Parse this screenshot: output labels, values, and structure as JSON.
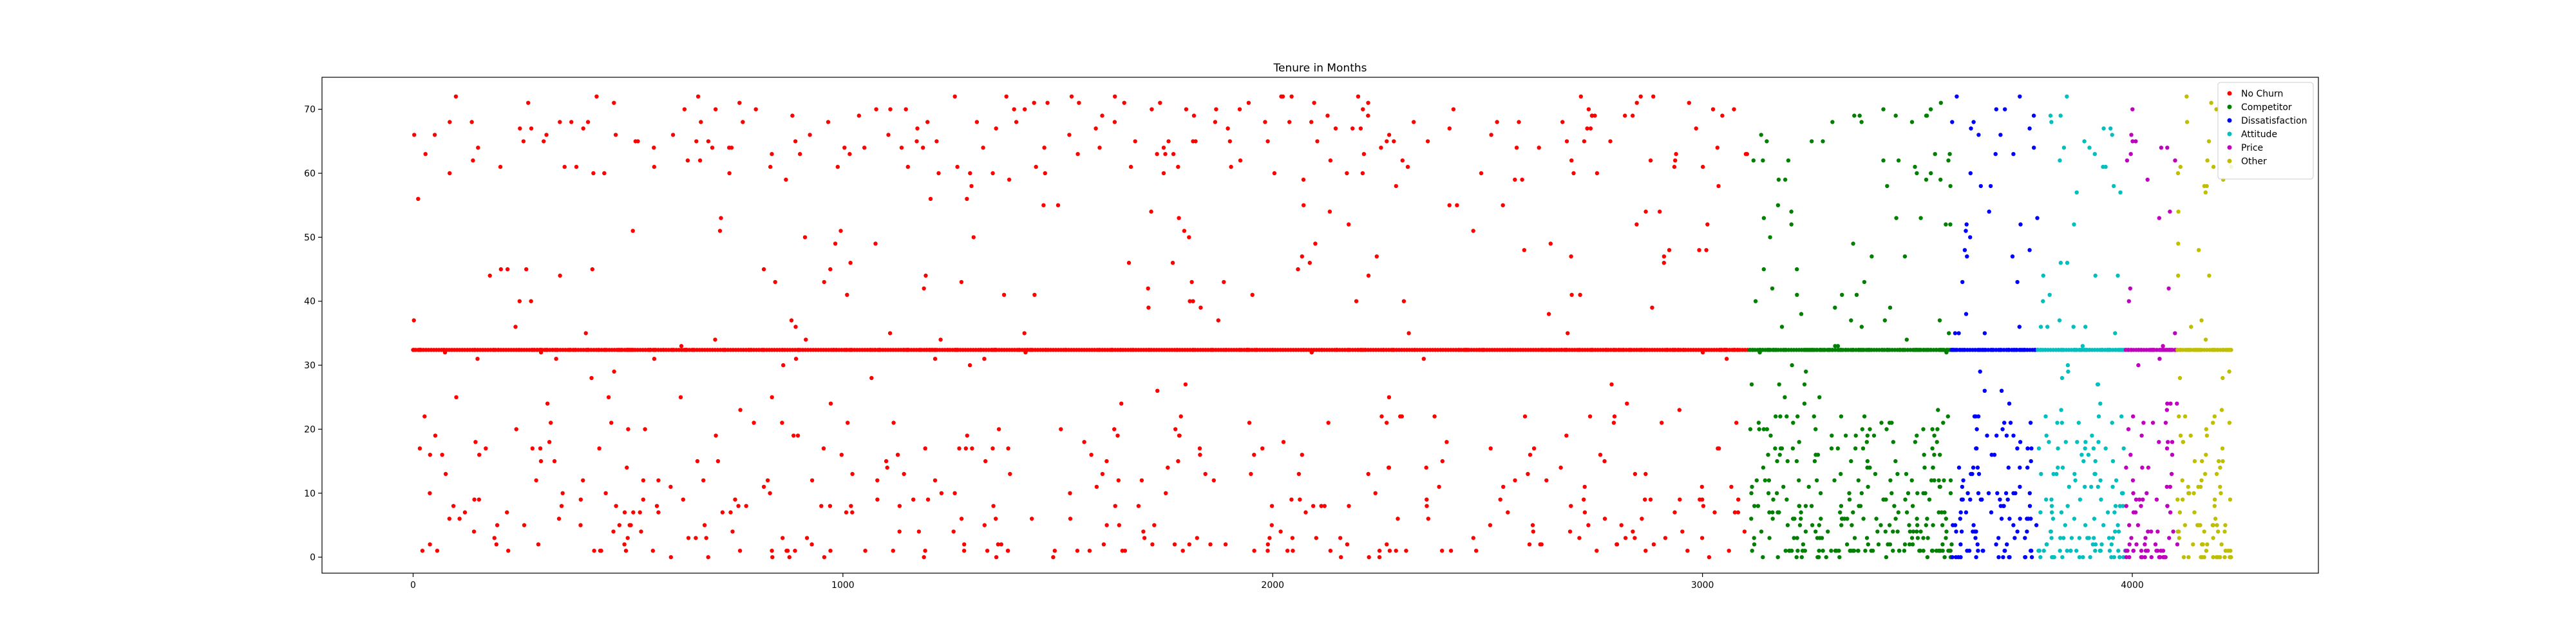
{
  "chart_data": {
    "type": "scatter",
    "title": "Tenure in Months",
    "xlabel": "",
    "ylabel": "",
    "xlim": [
      -212,
      4433
    ],
    "ylim": [
      -2.5,
      75
    ],
    "xticks": [
      0,
      1000,
      2000,
      3000,
      4000
    ],
    "yticks": [
      0,
      10,
      20,
      30,
      40,
      50,
      60,
      70
    ],
    "grid": false,
    "legend_position": "top-right",
    "series": [
      {
        "name": "No Churn",
        "color": "#ff0000",
        "x_range": [
          0,
          3105
        ],
        "count": 780,
        "seed": 11,
        "mean_fill_value": 32.4,
        "mean_fill_fraction": 0.17,
        "low_bias": 0.3,
        "high_bias": 0.18
      },
      {
        "name": "Competitor",
        "color": "#008000",
        "x_range": [
          3110,
          3580
        ],
        "count": 380,
        "seed": 23,
        "mean_fill_value": 32.4,
        "mean_fill_fraction": 0.16,
        "low_bias": 0.6,
        "high_bias": 0.04
      },
      {
        "name": "Dissatisfaction",
        "color": "#0000ff",
        "x_range": [
          3580,
          3780
        ],
        "count": 150,
        "seed": 37,
        "mean_fill_value": 32.4,
        "mean_fill_fraction": 0.17,
        "low_bias": 0.45,
        "high_bias": 0.08
      },
      {
        "name": "Attitude",
        "color": "#00bfbf",
        "x_range": [
          3780,
          3985
        ],
        "count": 160,
        "seed": 41,
        "mean_fill_value": 32.4,
        "mean_fill_fraction": 0.17,
        "low_bias": 0.5,
        "high_bias": 0.05
      },
      {
        "name": "Price",
        "color": "#bf00bf",
        "x_range": [
          3985,
          4105
        ],
        "count": 95,
        "seed": 53,
        "mean_fill_value": 32.4,
        "mean_fill_fraction": 0.17,
        "low_bias": 0.5,
        "high_bias": 0.05
      },
      {
        "name": "Other",
        "color": "#bfbf00",
        "x_range": [
          4105,
          4230
        ],
        "count": 105,
        "seed": 67,
        "mean_fill_value": 32.4,
        "mean_fill_fraction": 0.17,
        "low_bias": 0.45,
        "high_bias": 0.06
      }
    ]
  }
}
